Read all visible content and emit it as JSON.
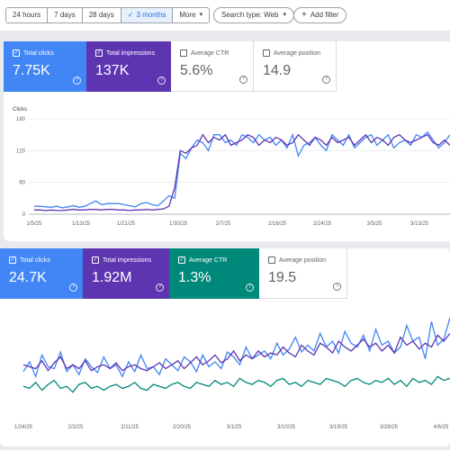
{
  "filters": {
    "ranges": [
      "24 hours",
      "7 days",
      "28 days",
      "3 months",
      "More"
    ],
    "active_range": "3 months",
    "search_type": "Search type: Web",
    "add_filter": "Add filter"
  },
  "top": {
    "cards": [
      {
        "label": "Total clicks",
        "value": "7.75K",
        "checked": true,
        "color": "#4285f4"
      },
      {
        "label": "Total impressions",
        "value": "137K",
        "checked": true,
        "color": "#5e35b1"
      },
      {
        "label": "Average CTR",
        "value": "5.6%",
        "checked": false,
        "color": "#ffffff"
      },
      {
        "label": "Average position",
        "value": "14.9",
        "checked": false,
        "color": "#ffffff"
      }
    ]
  },
  "bottom": {
    "cards": [
      {
        "label": "Total clicks",
        "value": "24.7K",
        "checked": true,
        "color": "#4285f4"
      },
      {
        "label": "Total impressions",
        "value": "1.92M",
        "checked": true,
        "color": "#5e35b1"
      },
      {
        "label": "Average CTR",
        "value": "1.3%",
        "checked": true,
        "color": "#00897b"
      },
      {
        "label": "Average position",
        "value": "19.5",
        "checked": false,
        "color": "#ffffff"
      }
    ]
  },
  "chart_data": [
    {
      "type": "line",
      "ylabel": "Clicks",
      "ylim": [
        0,
        180
      ],
      "yticks": [
        0,
        60,
        120,
        180
      ],
      "xticks": [
        "1/5/25",
        "1/13/25",
        "1/21/25",
        "1/30/25",
        "2/7/25",
        "2/16/25",
        "2/24/25",
        "3/5/25",
        "3/13/25"
      ],
      "grid": true,
      "series": [
        {
          "color": "#4285f4",
          "values": [
            15,
            15,
            14,
            13,
            15,
            12,
            14,
            16,
            13,
            15,
            20,
            25,
            18,
            20,
            20,
            20,
            18,
            16,
            14,
            20,
            22,
            18,
            16,
            25,
            35,
            30,
            115,
            105,
            125,
            140,
            135,
            120,
            150,
            150,
            135,
            140,
            130,
            150,
            145,
            135,
            150,
            140,
            145,
            130,
            140,
            125,
            150,
            110,
            130,
            135,
            145,
            130,
            120,
            150,
            140,
            130,
            150,
            125,
            135,
            145,
            150,
            130,
            140,
            150,
            125,
            135,
            140,
            130,
            150,
            145,
            155,
            140,
            125,
            135,
            150
          ]
        },
        {
          "color": "#5e35b1",
          "values": [
            8,
            8,
            7,
            8,
            7,
            7,
            8,
            9,
            8,
            8,
            9,
            9,
            8,
            9,
            9,
            8,
            8,
            7,
            8,
            8,
            9,
            8,
            9,
            10,
            15,
            50,
            120,
            115,
            125,
            130,
            150,
            135,
            145,
            140,
            150,
            130,
            135,
            140,
            150,
            145,
            130,
            140,
            135,
            145,
            140,
            130,
            135,
            150,
            140,
            130,
            145,
            140,
            130,
            145,
            135,
            140,
            145,
            130,
            140,
            150,
            135,
            145,
            140,
            130,
            145,
            150,
            140,
            135,
            140,
            145,
            150,
            135,
            130,
            140,
            130
          ]
        }
      ]
    },
    {
      "type": "line",
      "xticks": [
        "1/24/25",
        "2/2/25",
        "2/11/25",
        "2/20/25",
        "3/1/25",
        "3/10/25",
        "3/19/25",
        "3/28/25",
        "4/6/25"
      ],
      "series": [
        {
          "color": "#4285f4",
          "values": [
            45,
            55,
            40,
            62,
            50,
            48,
            65,
            45,
            52,
            42,
            58,
            50,
            44,
            60,
            48,
            52,
            40,
            55,
            45,
            62,
            48,
            50,
            42,
            58,
            52,
            46,
            60,
            55,
            45,
            62,
            50,
            55,
            48,
            65,
            60,
            52,
            70,
            58,
            62,
            66,
            58,
            74,
            62,
            68,
            80,
            65,
            72,
            66,
            84,
            70,
            76,
            64,
            86,
            74,
            70,
            82,
            66,
            88,
            72,
            76,
            64,
            70,
            92,
            76,
            80,
            58,
            96,
            72,
            78,
            100
          ]
        },
        {
          "color": "#5e35b1",
          "values": [
            52,
            50,
            48,
            56,
            46,
            54,
            60,
            48,
            52,
            48,
            56,
            46,
            50,
            52,
            48,
            54,
            46,
            50,
            52,
            48,
            46,
            50,
            54,
            48,
            52,
            56,
            48,
            54,
            60,
            52,
            56,
            62,
            54,
            58,
            66,
            56,
            62,
            58,
            66,
            60,
            64,
            62,
            70,
            64,
            60,
            72,
            66,
            62,
            74,
            70,
            64,
            76,
            70,
            66,
            72,
            78,
            70,
            74,
            66,
            72,
            64,
            80,
            72,
            76,
            68,
            74,
            70,
            82,
            76,
            84
          ]
        },
        {
          "color": "#00897b",
          "values": [
            30,
            28,
            34,
            26,
            32,
            36,
            28,
            30,
            24,
            32,
            34,
            28,
            30,
            26,
            30,
            32,
            28,
            30,
            34,
            28,
            26,
            32,
            30,
            28,
            32,
            34,
            30,
            28,
            34,
            32,
            30,
            36,
            32,
            34,
            30,
            38,
            34,
            32,
            36,
            34,
            30,
            36,
            38,
            32,
            34,
            30,
            36,
            34,
            32,
            38,
            36,
            34,
            30,
            36,
            38,
            34,
            32,
            36,
            34,
            38,
            32,
            36,
            30,
            38,
            34,
            36,
            32,
            40,
            36,
            38
          ]
        }
      ]
    }
  ]
}
